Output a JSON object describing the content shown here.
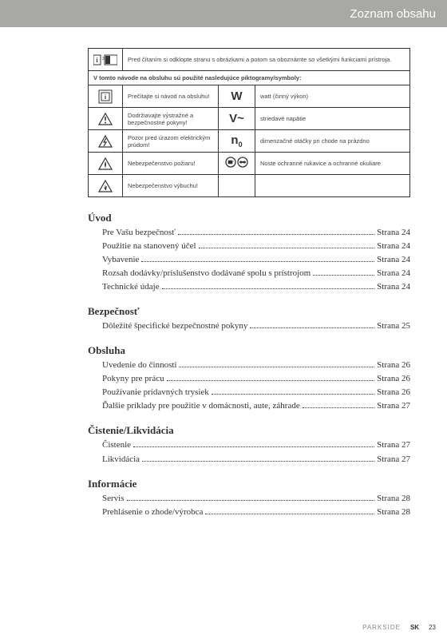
{
  "header": {
    "title": "Zoznam obsahu"
  },
  "symbols": {
    "intro": "Pred čítaním si odklopte stranu s obrázkami a potom sa oboznámte so všetkými funkciami prístroja.",
    "section": "V tomto návode na obsluhu sú použité nasledujúce piktogramy/symboly:",
    "rows": [
      {
        "left": "Prečítajte si návod na obsluhu!",
        "symbol": "W",
        "right": "watt (činný výkon)"
      },
      {
        "left": "Dodržiavajte výstražné a bezpečnostné pokyny!",
        "symbol": "V~",
        "right": "striedavé napätie"
      },
      {
        "left": "Pozor pred úrazom elektrickým prúdom!",
        "symbol": "n0",
        "right": "dimenzačné otáčky pri chode na prázdno"
      },
      {
        "left": "Nebezpečenstvo požiaru!",
        "symbol": "",
        "right": "Noste ochranné rukavice a ochranné okuliare"
      },
      {
        "left": "Nebezpečenstvo výbuchu!",
        "symbol": "",
        "right": ""
      }
    ]
  },
  "toc": [
    {
      "heading": "Úvod",
      "items": [
        {
          "label": "Pre Vašu bezpečnosť",
          "page": "Strana 24"
        },
        {
          "label": "Použitie na stanovený účel",
          "page": "Strana 24"
        },
        {
          "label": "Vybavenie",
          "page": "Strana 24"
        },
        {
          "label": "Rozsah dodávky/príslušenstvo dodávané spolu s prístrojom",
          "page": "Strana 24"
        },
        {
          "label": "Technické údaje",
          "page": "Strana 24"
        }
      ]
    },
    {
      "heading": "Bezpečnosť",
      "items": [
        {
          "label": "Dôležité špecifické bezpečnostné pokyny",
          "page": "Strana 25"
        }
      ]
    },
    {
      "heading": "Obsluha",
      "items": [
        {
          "label": "Uvedenie do činnosti",
          "page": "Strana 26"
        },
        {
          "label": "Pokyny pre prácu",
          "page": "Strana 26"
        },
        {
          "label": "Používanie prídavných trysiek",
          "page": "Strana 26"
        },
        {
          "label": "Ďalšie príklady pre použitie v domácnosti, aute, záhrade",
          "page": "Strana 27"
        }
      ]
    },
    {
      "heading": "Čistenie/Likvidácia",
      "items": [
        {
          "label": "Čistenie",
          "page": "Strana 27"
        },
        {
          "label": "Likvidácia",
          "page": "Strana 27"
        }
      ]
    },
    {
      "heading": "Informácie",
      "items": [
        {
          "label": "Servis",
          "page": "Strana 28"
        },
        {
          "label": "Prehlásenie o zhode/výrobca",
          "page": "Strana 28"
        }
      ]
    }
  ],
  "footer": {
    "brand": "PARKSIDE",
    "lang": "SK",
    "page": "23"
  }
}
